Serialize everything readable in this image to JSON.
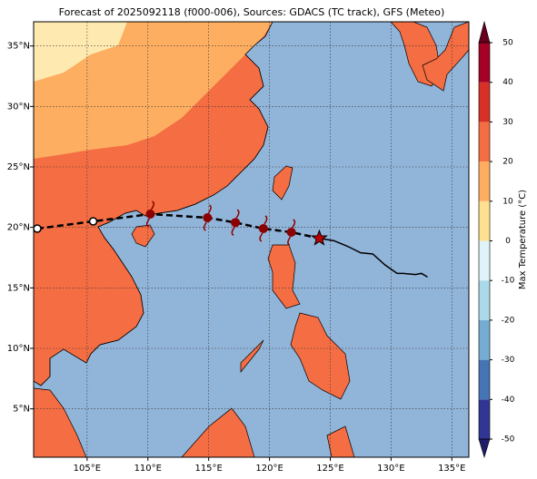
{
  "title": "Forecast of 2025092118 (f000-006), Sources: GDACS (TC track), GFS (Meteo)",
  "map": {
    "xlim": [
      100.6,
      136.4
    ],
    "ylim": [
      1,
      37
    ],
    "xticks": [
      {
        "value": 105,
        "label": "105°E"
      },
      {
        "value": 110,
        "label": "110°E"
      },
      {
        "value": 115,
        "label": "115°E"
      },
      {
        "value": 120,
        "label": "120°E"
      },
      {
        "value": 125,
        "label": "125°E"
      },
      {
        "value": 130,
        "label": "130°E"
      },
      {
        "value": 135,
        "label": "135°E"
      }
    ],
    "yticks": [
      {
        "value": 5,
        "label": "5°N"
      },
      {
        "value": 10,
        "label": "10°N"
      },
      {
        "value": 15,
        "label": "15°N"
      },
      {
        "value": 20,
        "label": "20°N"
      },
      {
        "value": 25,
        "label": "25°N"
      },
      {
        "value": 30,
        "label": "30°N"
      },
      {
        "value": 35,
        "label": "35°N"
      }
    ],
    "sea_color": "#91b4d9",
    "forecast_track": {
      "lon": [
        100.9,
        105.5,
        110.2,
        114.9,
        117.2,
        119.5,
        121.8,
        124.1
      ],
      "lat": [
        19.9,
        20.5,
        21.1,
        20.8,
        20.4,
        19.9,
        19.6,
        19.1
      ],
      "colors": [
        "#ffffff",
        "#ffffff",
        "#8b0000",
        "#8b0000",
        "#8b0000",
        "#8b0000",
        "#8b0000",
        "#c00000"
      ]
    },
    "past_track": {
      "lon": [
        124.1,
        125.3,
        126.5,
        127.5,
        128.5,
        129.5,
        130.5,
        131.0,
        132.0,
        132.5,
        133.0
      ],
      "lat": [
        19.1,
        18.9,
        18.4,
        17.9,
        17.8,
        16.9,
        16.2,
        16.2,
        16.1,
        16.2,
        15.9
      ]
    }
  },
  "colorbar": {
    "label": "Max Temperature (°C)",
    "lim": [
      -50,
      50
    ],
    "ticks": [
      -50,
      -40,
      -30,
      -20,
      -10,
      0,
      10,
      20,
      30,
      40,
      50
    ],
    "colors": [
      "#313695",
      "#4575b4",
      "#74add1",
      "#abd9e9",
      "#e0f3f8",
      "#fee090",
      "#fdae61",
      "#f46d43",
      "#d73027",
      "#a50026"
    ],
    "under_color": "#1f1d6a",
    "over_color": "#67001f"
  }
}
